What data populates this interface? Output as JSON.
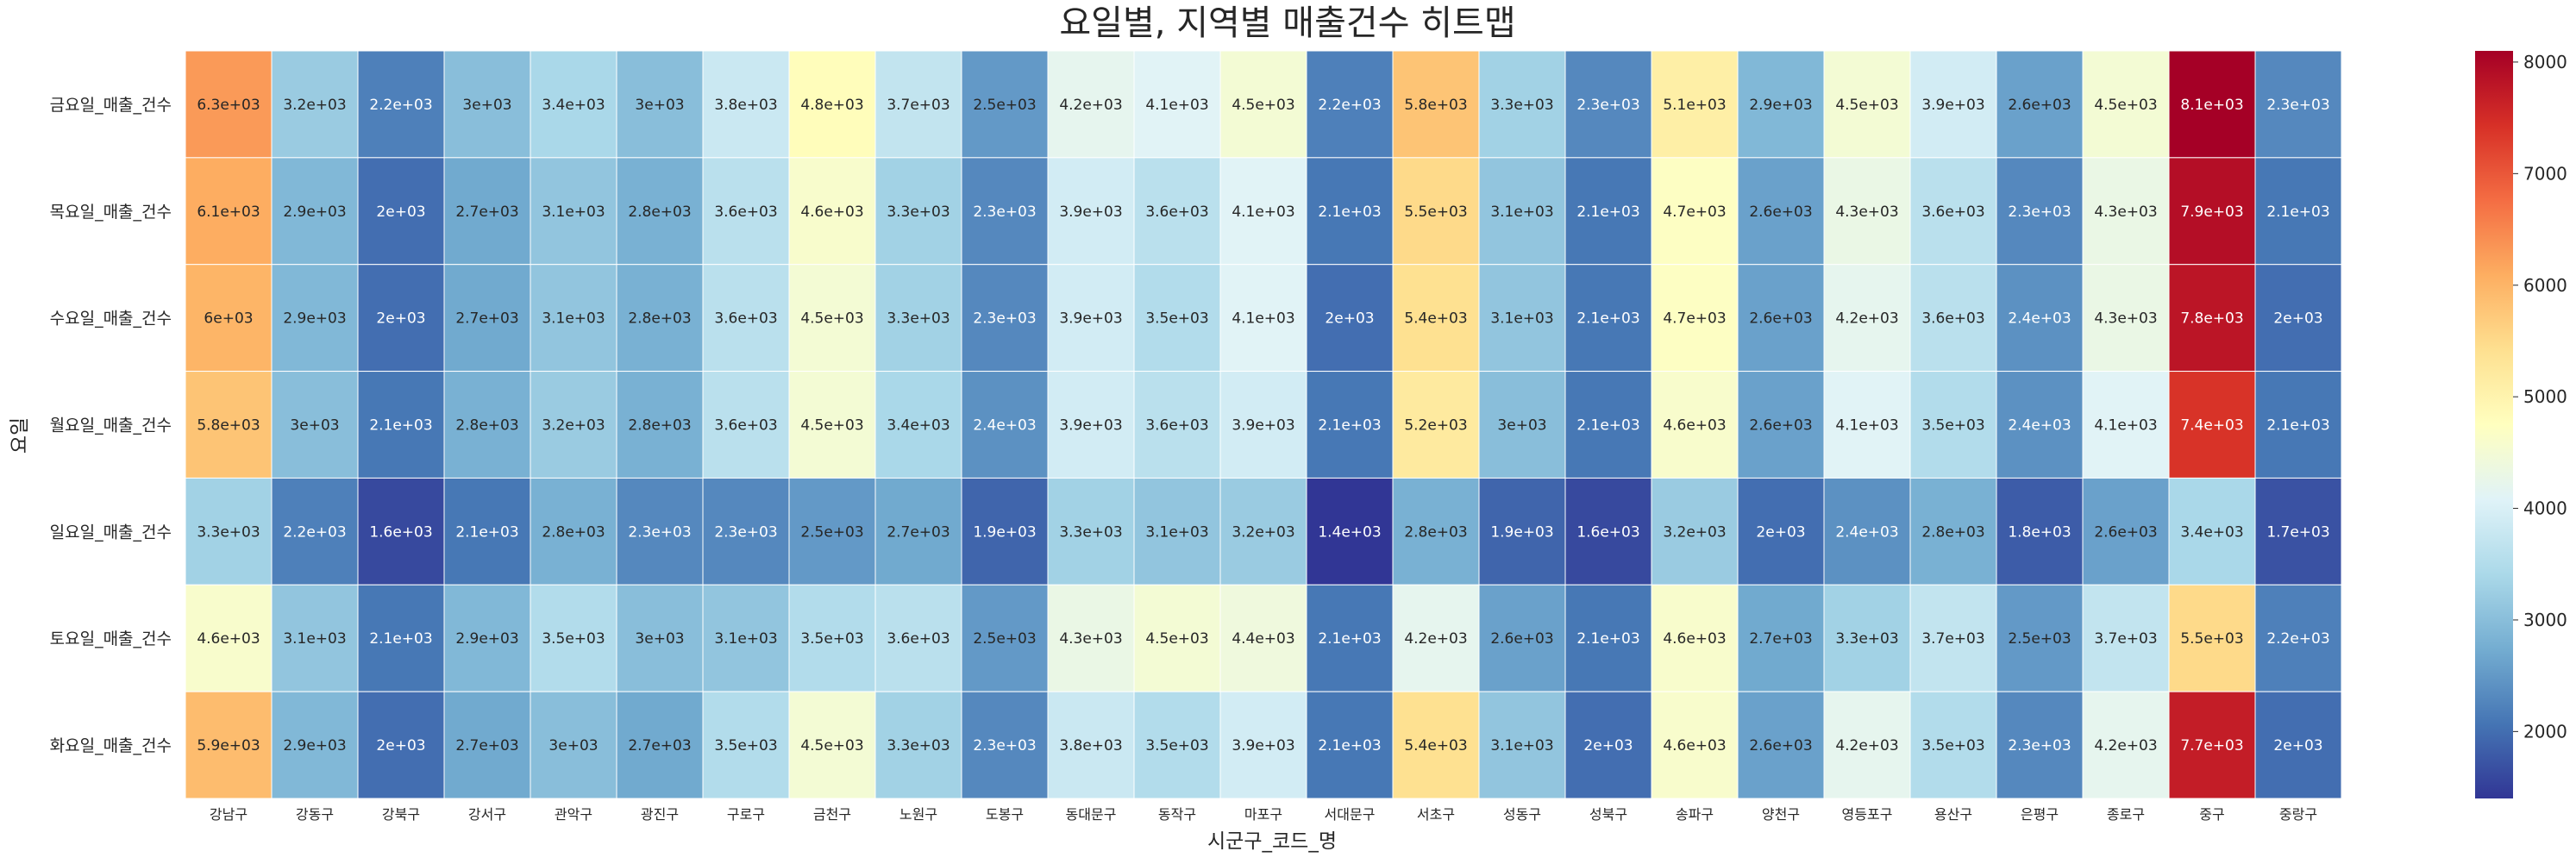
{
  "chart_data": {
    "type": "heatmap",
    "title": "요일별, 지역별 매출건수 히트맵",
    "xlabel": "시군구_코드_명",
    "ylabel": "요일",
    "x": [
      "강남구",
      "강동구",
      "강북구",
      "강서구",
      "관악구",
      "광진구",
      "구로구",
      "금천구",
      "노원구",
      "도봉구",
      "동대문구",
      "동작구",
      "마포구",
      "서대문구",
      "서초구",
      "성동구",
      "성북구",
      "송파구",
      "양천구",
      "영등포구",
      "용산구",
      "은평구",
      "종로구",
      "중구",
      "중랑구"
    ],
    "y": [
      "금요일_매출_건수",
      "목요일_매출_건수",
      "수요일_매출_건수",
      "월요일_매출_건수",
      "일요일_매출_건수",
      "토요일_매출_건수",
      "화요일_매출_건수"
    ],
    "values": [
      [
        6300,
        3200,
        2200,
        3000,
        3400,
        3000,
        3800,
        4800,
        3700,
        2500,
        4200,
        4100,
        4500,
        2200,
        5800,
        3300,
        2300,
        5100,
        2900,
        4500,
        3900,
        2600,
        4500,
        8100,
        2300
      ],
      [
        6100,
        2900,
        2000,
        2700,
        3100,
        2800,
        3600,
        4600,
        3300,
        2300,
        3900,
        3600,
        4100,
        2100,
        5500,
        3100,
        2100,
        4700,
        2600,
        4300,
        3600,
        2300,
        4300,
        7900,
        2100
      ],
      [
        6000,
        2900,
        2000,
        2700,
        3100,
        2800,
        3600,
        4500,
        3300,
        2300,
        3900,
        3500,
        4100,
        2000,
        5400,
        3100,
        2100,
        4700,
        2600,
        4200,
        3600,
        2400,
        4300,
        7800,
        2000
      ],
      [
        5800,
        3000,
        2100,
        2800,
        3200,
        2800,
        3600,
        4500,
        3400,
        2400,
        3900,
        3600,
        3900,
        2100,
        5200,
        3000,
        2100,
        4600,
        2600,
        4100,
        3500,
        2400,
        4100,
        7400,
        2100
      ],
      [
        3300,
        2200,
        1600,
        2100,
        2800,
        2300,
        2300,
        2500,
        2700,
        1900,
        3300,
        3100,
        3200,
        1400,
        2800,
        1900,
        1600,
        3200,
        2000,
        2400,
        2800,
        1800,
        2600,
        3400,
        1700
      ],
      [
        4600,
        3100,
        2100,
        2900,
        3500,
        3000,
        3100,
        3500,
        3600,
        2500,
        4300,
        4500,
        4400,
        2100,
        4200,
        2600,
        2100,
        4600,
        2700,
        3300,
        3700,
        2500,
        3700,
        5500,
        2200
      ],
      [
        5900,
        2900,
        2000,
        2700,
        3000,
        2700,
        3500,
        4500,
        3300,
        2300,
        3800,
        3500,
        3900,
        2100,
        5400,
        3100,
        2000,
        4600,
        2600,
        4200,
        3500,
        2300,
        4200,
        7700,
        2000
      ]
    ],
    "labels": [
      [
        "6.3e+03",
        "3.2e+03",
        "2.2e+03",
        "3e+03",
        "3.4e+03",
        "3e+03",
        "3.8e+03",
        "4.8e+03",
        "3.7e+03",
        "2.5e+03",
        "4.2e+03",
        "4.1e+03",
        "4.5e+03",
        "2.2e+03",
        "5.8e+03",
        "3.3e+03",
        "2.3e+03",
        "5.1e+03",
        "2.9e+03",
        "4.5e+03",
        "3.9e+03",
        "2.6e+03",
        "4.5e+03",
        "8.1e+03",
        "2.3e+03"
      ],
      [
        "6.1e+03",
        "2.9e+03",
        "2e+03",
        "2.7e+03",
        "3.1e+03",
        "2.8e+03",
        "3.6e+03",
        "4.6e+03",
        "3.3e+03",
        "2.3e+03",
        "3.9e+03",
        "3.6e+03",
        "4.1e+03",
        "2.1e+03",
        "5.5e+03",
        "3.1e+03",
        "2.1e+03",
        "4.7e+03",
        "2.6e+03",
        "4.3e+03",
        "3.6e+03",
        "2.3e+03",
        "4.3e+03",
        "7.9e+03",
        "2.1e+03"
      ],
      [
        "6e+03",
        "2.9e+03",
        "2e+03",
        "2.7e+03",
        "3.1e+03",
        "2.8e+03",
        "3.6e+03",
        "4.5e+03",
        "3.3e+03",
        "2.3e+03",
        "3.9e+03",
        "3.5e+03",
        "4.1e+03",
        "2e+03",
        "5.4e+03",
        "3.1e+03",
        "2.1e+03",
        "4.7e+03",
        "2.6e+03",
        "4.2e+03",
        "3.6e+03",
        "2.4e+03",
        "4.3e+03",
        "7.8e+03",
        "2e+03"
      ],
      [
        "5.8e+03",
        "3e+03",
        "2.1e+03",
        "2.8e+03",
        "3.2e+03",
        "2.8e+03",
        "3.6e+03",
        "4.5e+03",
        "3.4e+03",
        "2.4e+03",
        "3.9e+03",
        "3.6e+03",
        "3.9e+03",
        "2.1e+03",
        "5.2e+03",
        "3e+03",
        "2.1e+03",
        "4.6e+03",
        "2.6e+03",
        "4.1e+03",
        "3.5e+03",
        "2.4e+03",
        "4.1e+03",
        "7.4e+03",
        "2.1e+03"
      ],
      [
        "3.3e+03",
        "2.2e+03",
        "1.6e+03",
        "2.1e+03",
        "2.8e+03",
        "2.3e+03",
        "2.3e+03",
        "2.5e+03",
        "2.7e+03",
        "1.9e+03",
        "3.3e+03",
        "3.1e+03",
        "3.2e+03",
        "1.4e+03",
        "2.8e+03",
        "1.9e+03",
        "1.6e+03",
        "3.2e+03",
        "2e+03",
        "2.4e+03",
        "2.8e+03",
        "1.8e+03",
        "2.6e+03",
        "3.4e+03",
        "1.7e+03"
      ],
      [
        "4.6e+03",
        "3.1e+03",
        "2.1e+03",
        "2.9e+03",
        "3.5e+03",
        "3e+03",
        "3.1e+03",
        "3.5e+03",
        "3.6e+03",
        "2.5e+03",
        "4.3e+03",
        "4.5e+03",
        "4.4e+03",
        "2.1e+03",
        "4.2e+03",
        "2.6e+03",
        "2.1e+03",
        "4.6e+03",
        "2.7e+03",
        "3.3e+03",
        "3.7e+03",
        "2.5e+03",
        "3.7e+03",
        "5.5e+03",
        "2.2e+03"
      ],
      [
        "5.9e+03",
        "2.9e+03",
        "2e+03",
        "2.7e+03",
        "3e+03",
        "2.7e+03",
        "3.5e+03",
        "4.5e+03",
        "3.3e+03",
        "2.3e+03",
        "3.8e+03",
        "3.5e+03",
        "3.9e+03",
        "2.1e+03",
        "5.4e+03",
        "3.1e+03",
        "2e+03",
        "4.6e+03",
        "2.6e+03",
        "4.2e+03",
        "3.5e+03",
        "2.3e+03",
        "4.2e+03",
        "7.7e+03",
        "2e+03"
      ]
    ],
    "colormap": "RdYlBu_r",
    "vmin": 1400,
    "vmax": 8100,
    "colorbar_ticks": [
      2000,
      3000,
      4000,
      5000,
      6000,
      7000,
      8000
    ],
    "colors": [
      "#313695",
      "#4575b4",
      "#74add1",
      "#abd9e9",
      "#e0f3f8",
      "#ffffbf",
      "#fee090",
      "#fdae61",
      "#f46d43",
      "#d73027",
      "#a50026"
    ],
    "grid": true
  }
}
